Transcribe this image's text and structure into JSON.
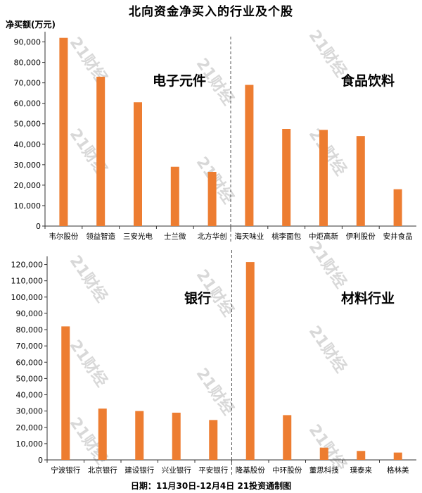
{
  "title": "北向资金净买入的行业及个股",
  "y_unit_label": "净买额(万元)",
  "footer": "日期：11月30日-12月4日 21投资通制图",
  "watermark_text": "21财经",
  "colors": {
    "bar": "#ED7D31",
    "axis": "#333333",
    "divider": "#555555"
  },
  "chart_data": [
    {
      "type": "bar",
      "ylim": [
        0,
        95000
      ],
      "yticks": [
        "0",
        "10,000",
        "20,000",
        "30,000",
        "40,000",
        "50,000",
        "60,000",
        "70,000",
        "80,000",
        "90,000"
      ],
      "groups": [
        {
          "sector": "电子元件",
          "categories": [
            "韦尔股份",
            "领益智造",
            "三安光电",
            "士兰微",
            "北方华创"
          ],
          "values": [
            92000,
            73000,
            60500,
            29000,
            26500
          ]
        },
        {
          "sector": "食品饮料",
          "categories": [
            "海天味业",
            "桃李面包",
            "中炬高新",
            "伊利股份",
            "安井食品"
          ],
          "values": [
            69000,
            47500,
            47000,
            44000,
            18000
          ]
        }
      ]
    },
    {
      "type": "bar",
      "ylim": [
        0,
        125000
      ],
      "yticks": [
        "0",
        "10,000",
        "20,000",
        "30,000",
        "40,000",
        "50,000",
        "60,000",
        "70,000",
        "80,000",
        "90,000",
        "100,000",
        "110,000",
        "120,000"
      ],
      "groups": [
        {
          "sector": "银行",
          "categories": [
            "宁波银行",
            "北京银行",
            "建设银行",
            "兴业银行",
            "平安银行"
          ],
          "values": [
            82000,
            31500,
            30000,
            29000,
            24500
          ]
        },
        {
          "sector": "材料行业",
          "categories": [
            "隆基股份",
            "中环股份",
            "董思科技",
            "璞泰来",
            "格林美"
          ],
          "values": [
            121500,
            27500,
            7500,
            5500,
            4500
          ]
        }
      ]
    }
  ]
}
